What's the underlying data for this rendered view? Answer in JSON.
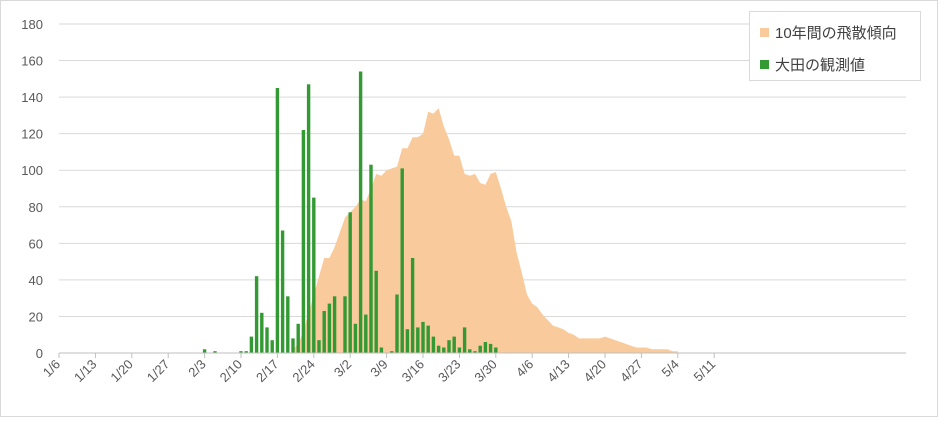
{
  "chart_data": {
    "type": "bar",
    "x_tick_labels": [
      "1/6",
      "1/13",
      "1/20",
      "1/27",
      "2/3",
      "2/10",
      "2/17",
      "2/24",
      "3/2",
      "3/9",
      "3/16",
      "3/23",
      "3/30",
      "4/6",
      "4/13",
      "4/20",
      "4/27",
      "5/4",
      "5/11"
    ],
    "y_ticks": [
      0,
      20,
      40,
      60,
      80,
      100,
      120,
      140,
      160,
      180
    ],
    "ylim": [
      0,
      180
    ],
    "grid": true,
    "legend_position": "top-right",
    "series": [
      {
        "name": "10年間の飛散傾向",
        "kind": "area",
        "color": "#f9cb9c",
        "start_date": "2/20",
        "values": [
          2,
          5,
          12,
          22,
          32,
          42,
          52,
          52,
          58,
          66,
          74,
          77,
          80,
          84,
          83,
          90,
          98,
          97,
          100,
          101,
          102,
          112,
          112,
          118,
          118,
          120,
          132,
          131,
          134,
          124,
          117,
          108,
          108,
          98,
          97,
          98,
          93,
          92,
          98,
          99,
          90,
          80,
          72,
          55,
          44,
          32,
          27,
          25,
          21,
          18,
          15,
          14,
          13,
          11,
          10,
          8,
          8,
          8,
          8,
          8,
          9,
          8,
          7,
          6,
          5,
          4,
          3,
          3,
          3,
          2,
          2,
          2,
          2,
          1,
          1
        ]
      },
      {
        "name": "大田の観測値",
        "kind": "bar",
        "color": "#339933",
        "dates": [
          "2/3",
          "2/4",
          "2/5",
          "2/9",
          "2/10",
          "2/11",
          "2/12",
          "2/13",
          "2/14",
          "2/15",
          "2/16",
          "2/17",
          "2/18",
          "2/19",
          "2/20",
          "2/21",
          "2/22",
          "2/23",
          "2/24",
          "2/25",
          "2/26",
          "2/27",
          "2/28",
          "3/1",
          "3/2",
          "3/3",
          "3/4",
          "3/5",
          "3/6",
          "3/7",
          "3/8",
          "3/9",
          "3/10",
          "3/11",
          "3/12",
          "3/13",
          "3/14",
          "3/15",
          "3/16",
          "3/17",
          "3/18",
          "3/19",
          "3/20",
          "3/21",
          "3/22",
          "3/23",
          "3/24",
          "3/25",
          "3/26",
          "3/27",
          "3/28",
          "3/29",
          "3/30"
        ],
        "values": [
          2,
          0,
          1,
          0,
          1,
          1,
          9,
          42,
          22,
          14,
          7,
          145,
          67,
          31,
          8,
          16,
          122,
          147,
          85,
          7,
          23,
          27,
          31,
          31,
          77,
          16,
          154,
          21,
          103,
          45,
          3,
          0,
          1,
          32,
          101,
          13,
          52,
          14,
          17,
          15,
          9,
          4,
          3,
          7,
          9,
          3,
          14,
          2,
          1,
          4,
          6,
          5,
          3
        ]
      }
    ]
  }
}
